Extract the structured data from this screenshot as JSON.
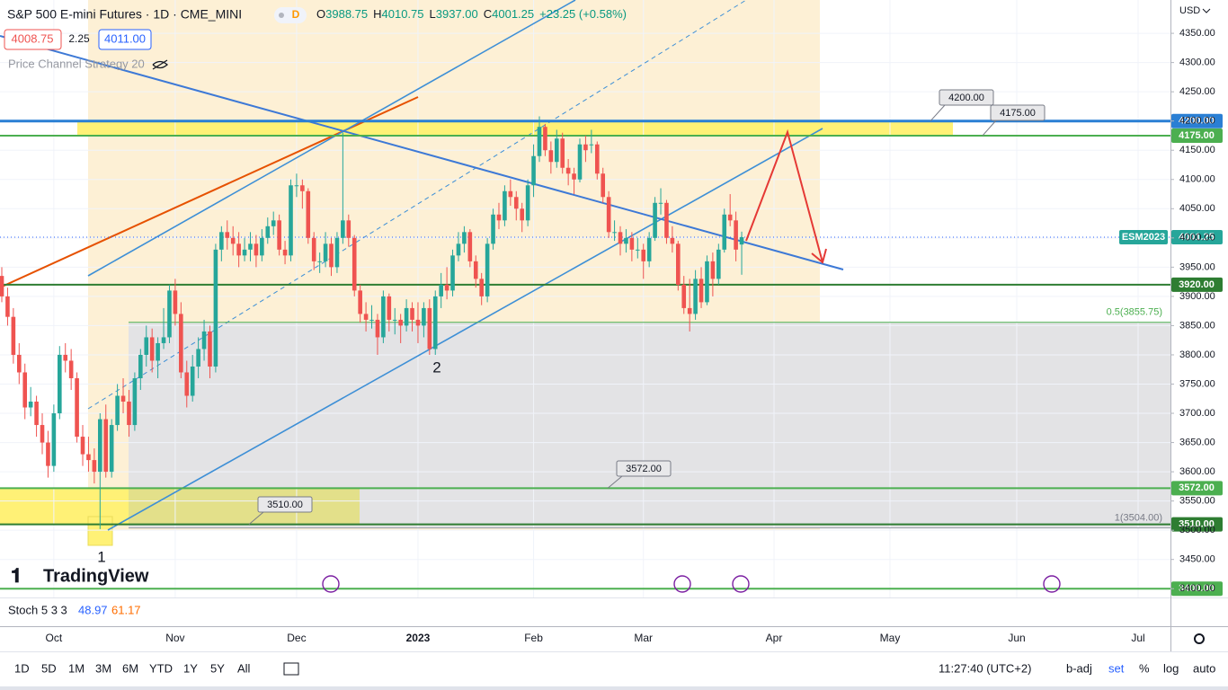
{
  "header": {
    "symbol": "S&P 500 E-mini Futures · 1D · CME_MINI",
    "badge": "D",
    "ohlc": [
      {
        "label": "O",
        "value": "3988.75"
      },
      {
        "label": "H",
        "value": "4010.75"
      },
      {
        "label": "L",
        "value": "3937.00"
      },
      {
        "label": "C",
        "value": "4001.25"
      }
    ],
    "change": "+23.25 (+0.58%)",
    "bid": "4008.75",
    "spread": "2.25",
    "ask": "4011.00",
    "indicator": "Price Channel Strategy 20"
  },
  "chart_data": {
    "type": "candlestick",
    "currency": "USD",
    "up_color": "#26a69a",
    "down_color": "#ef5350",
    "categories": [
      null,
      null,
      null,
      null,
      null,
      null,
      null,
      null,
      null,
      "Oct",
      null,
      null,
      null,
      null,
      null,
      null,
      null,
      null,
      null,
      null,
      null,
      null,
      null,
      null,
      null,
      null,
      null,
      null,
      null,
      null,
      "Nov",
      null,
      null,
      null,
      null,
      null,
      null,
      null,
      null,
      null,
      null,
      null,
      null,
      null,
      null,
      null,
      null,
      null,
      null,
      null,
      null,
      "Dec",
      null,
      null,
      null,
      null,
      null,
      null,
      null,
      null,
      null,
      null,
      null,
      null,
      null,
      null,
      null,
      null,
      null,
      null,
      null,
      null,
      "2023",
      null,
      null,
      null,
      null,
      null,
      null,
      null,
      null,
      null,
      null,
      null,
      null,
      null,
      null,
      null,
      null,
      null,
      null,
      null,
      "Feb",
      null,
      null,
      null,
      null,
      null,
      null,
      null,
      null,
      null,
      null,
      null,
      null,
      null,
      null,
      null,
      null,
      null,
      null,
      "Mar",
      null,
      null,
      null,
      null,
      null,
      null,
      null,
      null,
      null,
      null,
      null,
      null,
      null,
      null,
      null,
      null,
      null
    ],
    "categories_ahead": [
      "Apr",
      "May",
      "Jun",
      "Jul"
    ],
    "open": [
      3935,
      3900,
      3865,
      3800,
      3770,
      3710,
      3720,
      3680,
      3650,
      3610,
      3700,
      3800,
      3790,
      3760,
      3660,
      3630,
      3620,
      3600,
      3690,
      3600,
      3680,
      3730,
      3720,
      3680,
      3760,
      3800,
      3830,
      3790,
      3820,
      3830,
      3910,
      3870,
      3770,
      3730,
      3780,
      3810,
      3840,
      3780,
      3980,
      4010,
      4000,
      3990,
      3970,
      3980,
      3990,
      3970,
      4000,
      4020,
      4030,
      3980,
      3970,
      4090,
      4090,
      4080,
      4000,
      3960,
      3960,
      3990,
      3950,
      4000,
      4030,
      4000,
      3910,
      3870,
      3860,
      3860,
      3830,
      3900,
      3860,
      3860,
      3850,
      3880,
      3860,
      3850,
      3880,
      3810,
      3900,
      3920,
      3910,
      3970,
      3990,
      4010,
      3960,
      3930,
      3900,
      3990,
      4040,
      4030,
      4080,
      4070,
      4050,
      4030,
      4090,
      4140,
      4190,
      4150,
      4130,
      4170,
      4120,
      4110,
      4100,
      4160,
      4160,
      4160,
      4110,
      4070,
      4010,
      4010,
      3990,
      4000,
      3980,
      3980,
      3960,
      4000,
      4060,
      4060,
      4000,
      3990,
      3920,
      3880,
      3870,
      3930,
      3890,
      3960,
      3930,
      3980,
      4040,
      4030,
      3988.75
    ],
    "high": [
      3950,
      3915,
      3880,
      3820,
      3785,
      3745,
      3730,
      3700,
      3670,
      3715,
      3815,
      3820,
      3810,
      3770,
      3680,
      3660,
      3640,
      3700,
      3715,
      3690,
      3750,
      3760,
      3740,
      3770,
      3810,
      3850,
      3845,
      3830,
      3880,
      3920,
      3930,
      3890,
      3790,
      3800,
      3830,
      3860,
      3850,
      3990,
      4020,
      4030,
      4020,
      4010,
      4000,
      4010,
      4005,
      4015,
      4035,
      4045,
      4040,
      3995,
      4100,
      4110,
      4100,
      4085,
      4010,
      3975,
      4010,
      4000,
      4010,
      4180,
      4040,
      4005,
      3920,
      3890,
      3885,
      3870,
      3910,
      3905,
      3880,
      3870,
      3895,
      3890,
      3890,
      3890,
      3895,
      3910,
      3940,
      3950,
      3980,
      4010,
      4020,
      4015,
      3970,
      3940,
      4000,
      4050,
      4060,
      4090,
      4100,
      4080,
      4060,
      4100,
      4160,
      4208,
      4195,
      4165,
      4185,
      4180,
      4135,
      4120,
      4170,
      4175,
      4185,
      4165,
      4120,
      4080,
      4030,
      4020,
      4015,
      4010,
      4000,
      3990,
      4010,
      4070,
      4085,
      4065,
      4020,
      3995,
      3935,
      3930,
      3945,
      3950,
      3970,
      3975,
      3990,
      4050,
      4075,
      4045,
      4010.75
    ],
    "low": [
      3890,
      3850,
      3785,
      3750,
      3690,
      3695,
      3660,
      3630,
      3590,
      3600,
      3690,
      3770,
      3740,
      3650,
      3610,
      3600,
      3580,
      3502,
      3590,
      3590,
      3670,
      3700,
      3660,
      3670,
      3740,
      3780,
      3770,
      3760,
      3810,
      3820,
      3850,
      3760,
      3710,
      3720,
      3760,
      3790,
      3760,
      3770,
      3960,
      3980,
      3970,
      3950,
      3960,
      3960,
      3950,
      3960,
      3990,
      4005,
      3970,
      3955,
      3960,
      4070,
      4050,
      3990,
      3945,
      3940,
      3950,
      3935,
      3940,
      3990,
      3985,
      3900,
      3855,
      3840,
      3845,
      3800,
      3820,
      3840,
      3835,
      3820,
      3840,
      3840,
      3820,
      3830,
      3800,
      3800,
      3880,
      3895,
      3900,
      3960,
      3975,
      3950,
      3915,
      3885,
      3890,
      3980,
      4015,
      4020,
      4055,
      4030,
      4010,
      4020,
      4070,
      4130,
      4140,
      4110,
      4120,
      4110,
      4090,
      4075,
      4095,
      4130,
      4145,
      4100,
      4060,
      4000,
      3995,
      3970,
      3975,
      3960,
      3965,
      3930,
      3950,
      3995,
      4040,
      3990,
      3975,
      3910,
      3870,
      3840,
      3860,
      3880,
      3885,
      3900,
      3920,
      3975,
      4020,
      3960,
      3937
    ],
    "close": [
      3900,
      3865,
      3800,
      3770,
      3710,
      3720,
      3680,
      3650,
      3610,
      3700,
      3800,
      3790,
      3760,
      3660,
      3630,
      3620,
      3600,
      3690,
      3600,
      3680,
      3730,
      3720,
      3680,
      3760,
      3800,
      3830,
      3790,
      3820,
      3830,
      3910,
      3870,
      3770,
      3730,
      3780,
      3810,
      3840,
      3780,
      3980,
      4010,
      4000,
      3990,
      3970,
      3980,
      3990,
      3970,
      4000,
      4020,
      4030,
      3980,
      3970,
      4090,
      4090,
      4080,
      4000,
      3960,
      3960,
      3990,
      3950,
      4000,
      4030,
      4000,
      3910,
      3870,
      3860,
      3860,
      3830,
      3900,
      3860,
      3860,
      3850,
      3880,
      3860,
      3850,
      3880,
      3810,
      3900,
      3920,
      3910,
      3970,
      3990,
      4010,
      3960,
      3930,
      3900,
      3990,
      4040,
      4030,
      4080,
      4070,
      4050,
      4030,
      4090,
      4140,
      4190,
      4150,
      4130,
      4170,
      4120,
      4110,
      4100,
      4160,
      4150,
      4160,
      4110,
      4070,
      4010,
      4010,
      3990,
      4000,
      3980,
      3980,
      3960,
      4000,
      4060,
      4060,
      4000,
      3990,
      3920,
      3880,
      3870,
      3930,
      3890,
      3960,
      3930,
      3980,
      4040,
      4030,
      3980,
      4001.25
    ],
    "ylim": [
      3385,
      4407
    ],
    "yticks": [
      {
        "value": 3400,
        "label": "3400.00"
      },
      {
        "value": 3450,
        "label": "3450.00"
      },
      {
        "value": 3500,
        "label": "3500.00"
      },
      {
        "value": 3550,
        "label": "3550.00"
      },
      {
        "value": 3600,
        "label": "3600.00"
      },
      {
        "value": 3650,
        "label": "3650.00"
      },
      {
        "value": 3700,
        "label": "3700.00"
      },
      {
        "value": 3750,
        "label": "3750.00"
      },
      {
        "value": 3800,
        "label": "3800.00"
      },
      {
        "value": 3850,
        "label": "3850.00"
      },
      {
        "value": 3900,
        "label": "3900.00"
      },
      {
        "value": 3950,
        "label": "3950.00"
      },
      {
        "value": 4000,
        "label": "4000.00"
      },
      {
        "value": 4050,
        "label": "4050.00"
      },
      {
        "value": 4100,
        "label": "4100.00"
      },
      {
        "value": 4150,
        "label": "4150.00"
      },
      {
        "value": 4200,
        "label": "4200.00"
      },
      {
        "value": 4250,
        "label": "4250.00"
      },
      {
        "value": 4300,
        "label": "4300.00"
      },
      {
        "value": 4350,
        "label": "4350.00"
      }
    ],
    "grid": true,
    "price_lines": [
      {
        "value": 4200,
        "label": "4200.00",
        "color": "#2a7fd4",
        "callout": true
      },
      {
        "value": 4175,
        "label": "4175.00",
        "color": "#4caf50",
        "callout": true
      },
      {
        "value": 3920,
        "label": "3920.00",
        "color": "#2e7d32",
        "callout": false
      },
      {
        "value": 3572,
        "label": "3572.00",
        "color": "#4caf50",
        "callout": true
      },
      {
        "value": 3510,
        "label": "3510.00",
        "color": "#2e7d32",
        "callout": true
      },
      {
        "value": 3400,
        "label": "3400.00",
        "color": "#4caf50",
        "callout": false
      }
    ],
    "last_price": {
      "symbol": "ESM2023",
      "value": 4001.25
    },
    "fib_levels": [
      {
        "value": 3855.75,
        "label": "0.5(3855.75)"
      },
      {
        "value": 3504,
        "label": "1(3504.00)"
      }
    ],
    "wave_labels": [
      "1",
      "2"
    ]
  },
  "logo": "TradingView",
  "stoch": {
    "name": "Stoch 5 3 3",
    "k": "48.97",
    "d": "61.17"
  },
  "toolbar": {
    "ranges": [
      "1D",
      "5D",
      "1M",
      "3M",
      "6M",
      "YTD",
      "1Y",
      "5Y",
      "All"
    ],
    "clock": "11:27:40 (UTC+2)",
    "options": [
      "b-adj",
      "set",
      "%",
      "log",
      "auto"
    ]
  }
}
